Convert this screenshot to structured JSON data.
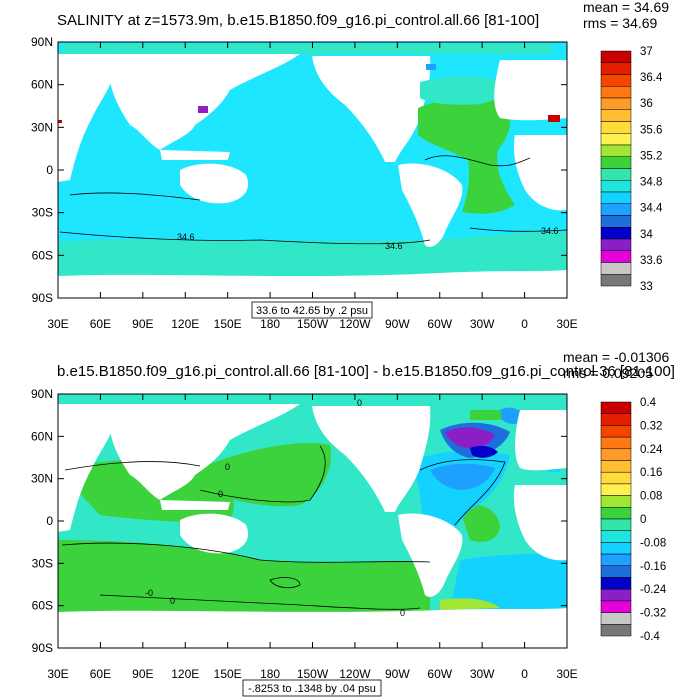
{
  "chart_data": [
    {
      "type": "heatmap",
      "title": "SALINITY at z=1573.9m, b.e15.B1850.f09_g16.pi_control.all.66 [81-100]",
      "mean_label": "mean = 34.69",
      "rms_label": "rms = 34.69",
      "contour_note": "33.6 to 42.65 by .2 psu",
      "y_ticks": [
        "90N",
        "60N",
        "30N",
        "0",
        "30S",
        "60S",
        "90S"
      ],
      "x_ticks": [
        "30E",
        "60E",
        "90E",
        "120E",
        "150E",
        "180",
        "150W",
        "120W",
        "90W",
        "60W",
        "30W",
        "0",
        "30E"
      ],
      "lat_range": [
        -90,
        90
      ],
      "lon_range": [
        30,
        390
      ],
      "colorbar": {
        "labels": [
          "37",
          "36.4",
          "36",
          "35.6",
          "35.2",
          "34.8",
          "34.4",
          "34",
          "33.6",
          "33"
        ],
        "colors": [
          "#c80000",
          "#e61e00",
          "#f54600",
          "#ff7814",
          "#ff9b28",
          "#ffbe32",
          "#ffdc3c",
          "#fff050",
          "#a0e632",
          "#3cd23c",
          "#32e6aa",
          "#1ee6dc",
          "#14d2ff",
          "#1ea0ff",
          "#1e6edc",
          "#0000c8",
          "#8c1ec8",
          "#e600dc",
          "#c8c8c8",
          "#787878"
        ]
      },
      "contour_labels": [
        "34.6",
        "34.6",
        "34.6"
      ]
    },
    {
      "type": "heatmap",
      "title": "b.e15.B1850.f09_g16.pi_control.all.66 [81-100] - b.e15.B1850.f09_g16.pi_control.36 [81-100]",
      "mean_label": "mean = -0.01306",
      "rms_label": "rms = 0.09205",
      "contour_note": "-.8253 to .1348 by .04 psu",
      "y_ticks": [
        "90N",
        "60N",
        "30N",
        "0",
        "30S",
        "60S",
        "90S"
      ],
      "x_ticks": [
        "30E",
        "60E",
        "90E",
        "120E",
        "150E",
        "180",
        "150W",
        "120W",
        "90W",
        "60W",
        "30W",
        "0",
        "30E"
      ],
      "lat_range": [
        -90,
        90
      ],
      "lon_range": [
        30,
        390
      ],
      "colorbar": {
        "labels": [
          "0.4",
          "0.32",
          "0.24",
          "0.16",
          "0.08",
          "0",
          "-0.08",
          "-0.16",
          "-0.24",
          "-0.32",
          "-0.4"
        ],
        "colors": [
          "#c80000",
          "#e61e00",
          "#f54600",
          "#ff7814",
          "#ff9b28",
          "#ffbe32",
          "#ffdc3c",
          "#fff050",
          "#a0e632",
          "#3cd23c",
          "#32e6aa",
          "#1ee6dc",
          "#14d2ff",
          "#1ea0ff",
          "#1e6edc",
          "#0000c8",
          "#8c1ec8",
          "#e600dc",
          "#c8c8c8",
          "#787878"
        ]
      },
      "contour_labels": [
        "0",
        "0",
        "0",
        "-0",
        "0",
        "0"
      ]
    }
  ]
}
